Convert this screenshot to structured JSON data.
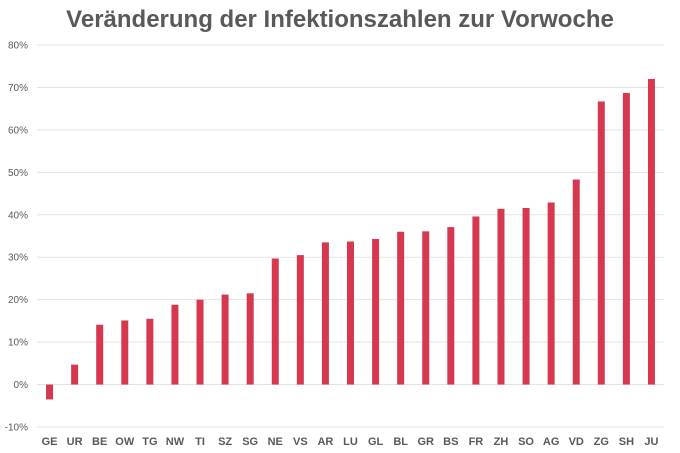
{
  "chart_data": {
    "type": "bar",
    "title": "Veränderung der Infektionszahlen zur Vorwoche",
    "xlabel": "",
    "ylabel": "",
    "categories": [
      "GE",
      "UR",
      "BE",
      "OW",
      "TG",
      "NW",
      "TI",
      "SZ",
      "SG",
      "NE",
      "VS",
      "AR",
      "LU",
      "GL",
      "BL",
      "GR",
      "BS",
      "FR",
      "ZH",
      "SO",
      "AG",
      "VD",
      "ZG",
      "SH",
      "JU"
    ],
    "values": [
      -3.5,
      4.7,
      14.1,
      15.1,
      15.5,
      18.8,
      20.0,
      21.2,
      21.5,
      29.7,
      30.5,
      33.5,
      33.7,
      34.3,
      36.0,
      36.1,
      37.1,
      39.6,
      41.4,
      41.6,
      42.9,
      48.3,
      66.7,
      68.7,
      72.0
    ],
    "unit": "%",
    "ylim": [
      -10,
      80
    ],
    "yticks": [
      -10,
      0,
      10,
      20,
      30,
      40,
      50,
      60,
      70,
      80
    ],
    "ytick_labels": [
      "-10%",
      "0%",
      "10%",
      "20%",
      "30%",
      "40%",
      "50%",
      "60%",
      "70%",
      "80%"
    ],
    "grid": true,
    "legend": "none",
    "bar_color": "#d6394f"
  }
}
